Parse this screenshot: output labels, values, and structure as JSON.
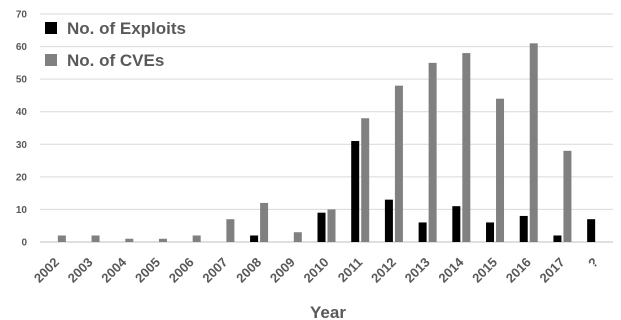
{
  "chart_data": {
    "type": "bar",
    "xlabel": "Year",
    "ylabel": "",
    "ylim": [
      0,
      70
    ],
    "yticks": [
      0,
      10,
      20,
      30,
      40,
      50,
      60,
      70
    ],
    "grid": true,
    "legend_position": "top-left",
    "categories": [
      "2002",
      "2003",
      "2004",
      "2005",
      "2006",
      "2007",
      "2008",
      "2009",
      "2010",
      "2011",
      "2012",
      "2013",
      "2014",
      "2015",
      "2016",
      "2017",
      "?"
    ],
    "series": [
      {
        "name": "No. of Exploits",
        "color": "#000000",
        "values": [
          0,
          0,
          0,
          0,
          0,
          0,
          2,
          0,
          9,
          31,
          13,
          6,
          11,
          6,
          8,
          2,
          7
        ]
      },
      {
        "name": "No. of CVEs",
        "color": "#808080",
        "values": [
          2,
          2,
          1,
          1,
          2,
          7,
          12,
          3,
          10,
          38,
          48,
          55,
          58,
          44,
          61,
          28,
          0
        ]
      }
    ]
  }
}
